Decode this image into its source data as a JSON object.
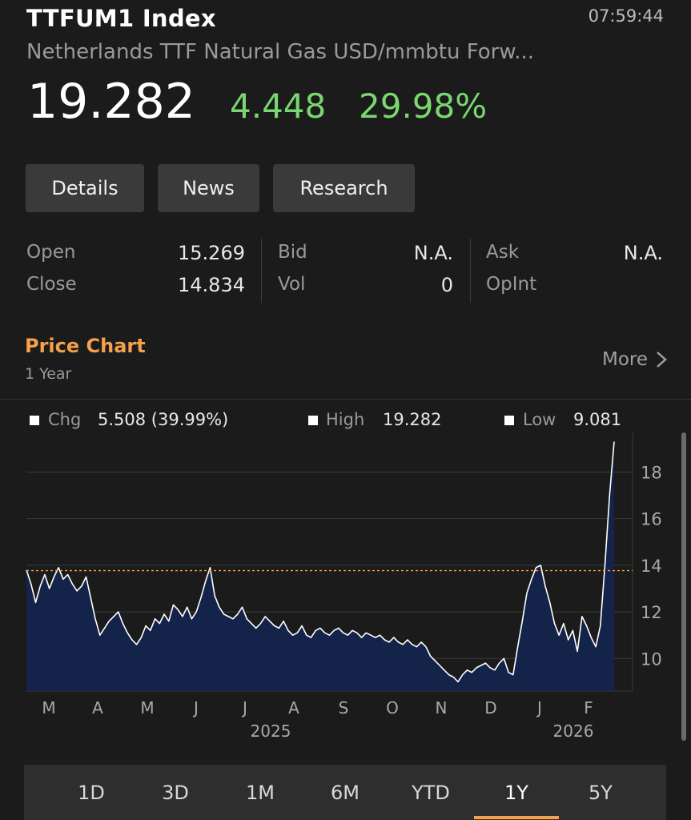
{
  "header": {
    "title": "TTFUM1 Index",
    "time": "07:59:44",
    "subtitle": "Netherlands TTF Natural Gas USD/mmbtu Forw...",
    "price": "19.282",
    "change": "4.448",
    "change_pct": "29.98%",
    "positive_color": "#7ad66f"
  },
  "buttons": {
    "details": "Details",
    "news": "News",
    "research": "Research"
  },
  "stats": {
    "open_label": "Open",
    "open_value": "15.269",
    "close_label": "Close",
    "close_value": "14.834",
    "bid_label": "Bid",
    "bid_value": "N.A.",
    "vol_label": "Vol",
    "vol_value": "0",
    "ask_label": "Ask",
    "ask_value": "N.A.",
    "opint_label": "OpInt"
  },
  "price_chart": {
    "title": "Price Chart",
    "range": "1 Year",
    "more_label": "More",
    "legend": {
      "chg_label": "Chg",
      "chg_value": "5.508 (39.99%)",
      "high_label": "High",
      "high_value": "19.282",
      "low_label": "Low",
      "low_value": "9.081"
    },
    "accent_color": "#f5a04a"
  },
  "chart_data": {
    "type": "area",
    "y_ticks": [
      "10",
      "12",
      "14",
      "16",
      "18"
    ],
    "x_ticks": [
      "M",
      "A",
      "M",
      "J",
      "J",
      "A",
      "S",
      "O",
      "N",
      "D",
      "J",
      "F"
    ],
    "year_labels": [
      "2025",
      "2026"
    ],
    "ylim": [
      8.6,
      19.7
    ],
    "reference_line": 13.77,
    "fill_color": "#13234a",
    "line_color": "#ffffff",
    "values": [
      13.8,
      13.2,
      12.4,
      13.1,
      13.6,
      13.0,
      13.5,
      13.9,
      13.4,
      13.6,
      13.2,
      12.9,
      13.1,
      13.5,
      12.6,
      11.7,
      11.0,
      11.3,
      11.6,
      11.8,
      12.0,
      11.5,
      11.1,
      10.8,
      10.6,
      10.9,
      11.4,
      11.2,
      11.7,
      11.5,
      11.9,
      11.6,
      12.3,
      12.1,
      11.8,
      12.2,
      11.7,
      12.0,
      12.6,
      13.3,
      13.9,
      12.7,
      12.2,
      11.9,
      11.8,
      11.7,
      11.9,
      12.2,
      11.7,
      11.5,
      11.3,
      11.5,
      11.8,
      11.6,
      11.4,
      11.3,
      11.6,
      11.2,
      11.0,
      11.1,
      11.4,
      11.0,
      10.9,
      11.2,
      11.3,
      11.1,
      11.0,
      11.2,
      11.3,
      11.1,
      11.0,
      11.2,
      11.1,
      10.9,
      11.1,
      11.0,
      10.9,
      11.0,
      10.8,
      10.7,
      10.9,
      10.7,
      10.6,
      10.8,
      10.6,
      10.5,
      10.7,
      10.5,
      10.1,
      9.9,
      9.7,
      9.5,
      9.3,
      9.2,
      9.0,
      9.3,
      9.5,
      9.4,
      9.6,
      9.7,
      9.8,
      9.6,
      9.5,
      9.8,
      10.0,
      9.4,
      9.3,
      10.5,
      11.6,
      12.8,
      13.4,
      13.9,
      14.0,
      13.1,
      12.4,
      11.5,
      11.0,
      11.5,
      10.8,
      11.2,
      10.3,
      11.8,
      11.4,
      10.9,
      10.5,
      11.4,
      14.0,
      17.0,
      19.3
    ],
    "high": 19.282,
    "low": 9.081
  },
  "periods": [
    "1D",
    "3D",
    "1M",
    "6M",
    "YTD",
    "1Y",
    "5Y"
  ],
  "selected_period": "1Y"
}
